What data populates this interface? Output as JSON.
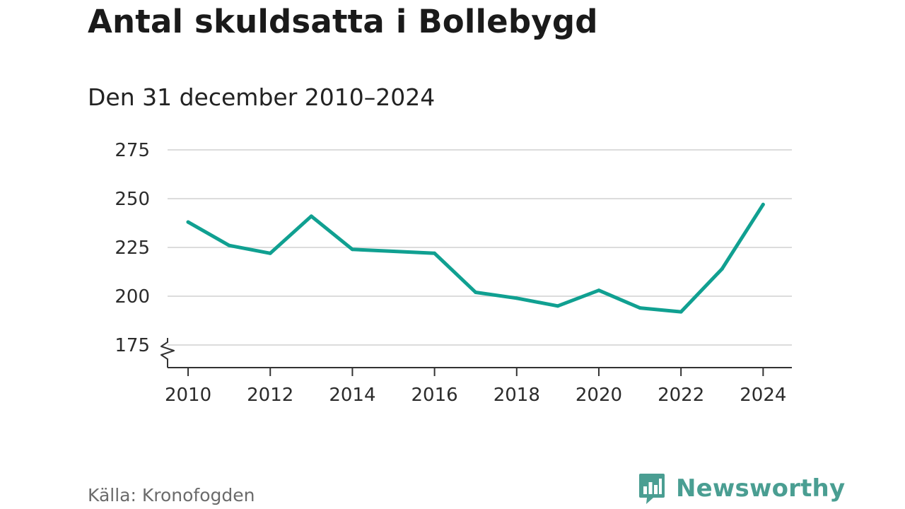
{
  "title": "Antal skuldsatta i Bollebygd",
  "subtitle": "Den 31 december 2010–2024",
  "source": "Källa: Kronofogden",
  "brand": {
    "name": "Newsworthy",
    "logo_icon": "bar-chart-speech-bubble-icon",
    "color": "#4a9e92"
  },
  "colors": {
    "line": "#10a091",
    "grid": "#dcdcdc",
    "axis": "#333333"
  },
  "chart_data": {
    "type": "line",
    "title": "Antal skuldsatta i Bollebygd",
    "subtitle": "Den 31 december 2010–2024",
    "xlabel": "",
    "ylabel": "",
    "x": [
      2010,
      2011,
      2012,
      2013,
      2014,
      2015,
      2016,
      2017,
      2018,
      2019,
      2020,
      2021,
      2022,
      2023,
      2024
    ],
    "series": [
      {
        "name": "Antal skuldsatta",
        "values": [
          238,
          226,
          222,
          241,
          224,
          223,
          222,
          202,
          199,
          195,
          203,
          194,
          192,
          214,
          247
        ]
      }
    ],
    "xlim": [
      2009.5,
      2024.7
    ],
    "ylim": [
      175,
      275
    ],
    "x_ticks": [
      "2010",
      "2012",
      "2014",
      "2016",
      "2018",
      "2020",
      "2022",
      "2024"
    ],
    "y_ticks": [
      "175",
      "200",
      "225",
      "250",
      "275"
    ],
    "grid": true,
    "axis_break": true
  }
}
